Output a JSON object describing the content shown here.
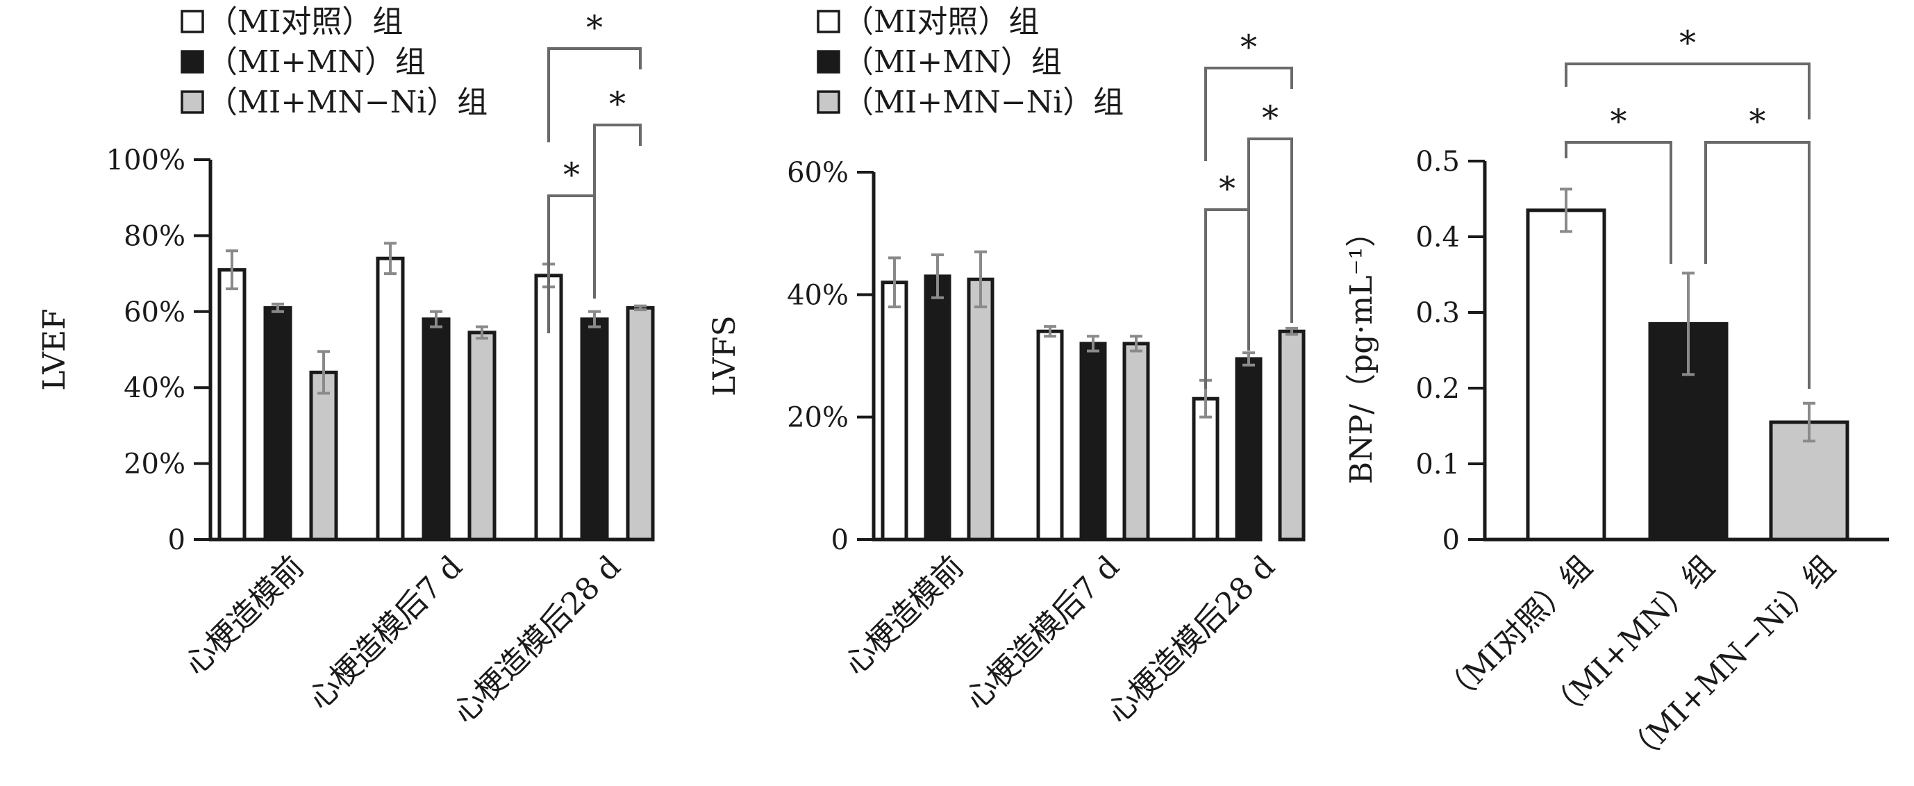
{
  "chart_data": [
    {
      "type": "bar",
      "ylabel": "LVEF",
      "categories": [
        "心梗造模前",
        "心梗造模后7 d",
        "心梗造模后28 d"
      ],
      "ylim": [
        0,
        100
      ],
      "yticks": [
        "0",
        "20%",
        "40%",
        "60%",
        "80%",
        "100%"
      ],
      "series": [
        {
          "name": "（MI对照）组",
          "values": [
            71,
            74,
            69.5
          ],
          "errors": [
            5,
            4,
            3
          ],
          "color": "#ffffff"
        },
        {
          "name": "（MI+MN）组",
          "values": [
            61,
            58,
            58
          ],
          "errors": [
            1,
            2,
            2
          ],
          "color": "#1a1a1a"
        },
        {
          "name": "（MI+MN−Ni）组",
          "values": [
            44,
            54.5,
            61
          ],
          "errors": [
            5.5,
            1.5,
            0.5
          ],
          "color": "#c8c8c8"
        }
      ],
      "legend_position": "top-left",
      "grid": false,
      "significance": [
        {
          "group": 2,
          "from": 0,
          "to": 1,
          "label": "*"
        },
        {
          "group": 2,
          "from": 1,
          "to": 2,
          "label": "*"
        },
        {
          "group": 2,
          "from": 0,
          "to": 2,
          "label": "*"
        }
      ]
    },
    {
      "type": "bar",
      "ylabel": "LVFS",
      "categories": [
        "心梗造模前",
        "心梗造模后7 d",
        "心梗造模后28 d"
      ],
      "ylim": [
        0,
        60
      ],
      "yticks": [
        "0",
        "20%",
        "40%",
        "60%"
      ],
      "series": [
        {
          "name": "（MI对照）组",
          "values": [
            42,
            34,
            23
          ],
          "errors": [
            4,
            0.8,
            3
          ],
          "color": "#ffffff"
        },
        {
          "name": "（MI+MN）组",
          "values": [
            43,
            32,
            29.5
          ],
          "errors": [
            3.5,
            1.2,
            1
          ],
          "color": "#1a1a1a"
        },
        {
          "name": "（MI+MN−Ni）组",
          "values": [
            42.5,
            32,
            34
          ],
          "errors": [
            4.5,
            1.2,
            0.5
          ],
          "color": "#c8c8c8"
        }
      ],
      "legend_position": "top-left",
      "grid": false,
      "significance": [
        {
          "group": 2,
          "from": 0,
          "to": 1,
          "label": "*"
        },
        {
          "group": 2,
          "from": 1,
          "to": 2,
          "label": "*"
        },
        {
          "group": 2,
          "from": 0,
          "to": 2,
          "label": "*"
        }
      ]
    },
    {
      "type": "bar",
      "ylabel": "BNP/（pg·mL⁻¹）",
      "categories": [
        "（MI对照）组",
        "（MI+MN）组",
        "（MI+MN−Ni）组"
      ],
      "ylim": [
        0,
        0.5
      ],
      "yticks": [
        "0",
        "0.1",
        "0.2",
        "0.3",
        "0.4",
        "0.5"
      ],
      "values": [
        0.435,
        0.285,
        0.155
      ],
      "errors": [
        0.028,
        0.067,
        0.025
      ],
      "colors": [
        "#ffffff",
        "#1a1a1a",
        "#c8c8c8"
      ],
      "grid": false,
      "significance": [
        {
          "from": 0,
          "to": 1,
          "label": "*"
        },
        {
          "from": 1,
          "to": 2,
          "label": "*"
        },
        {
          "from": 0,
          "to": 2,
          "label": "*"
        }
      ]
    }
  ]
}
